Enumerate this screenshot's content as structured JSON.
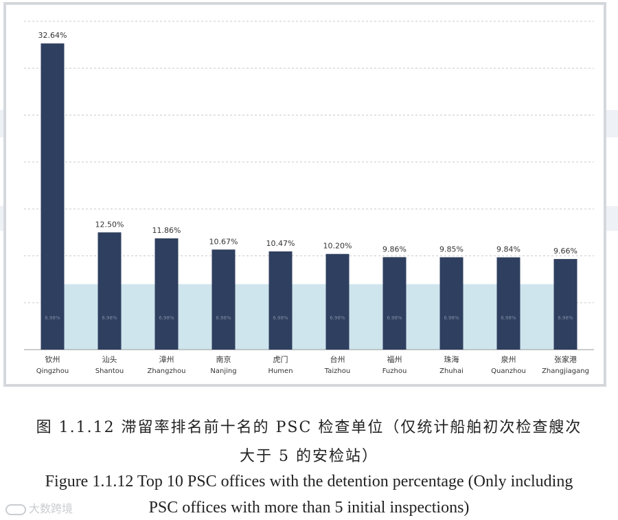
{
  "caption": {
    "cn_line1": "图 1.1.12 滞留率排名前十名的 PSC 检查单位（仅统计船舶初次检查艘次",
    "cn_line2": "大于 5 的安检站）",
    "en_line1": "Figure 1.1.12 Top 10 PSC offices with the detention percentage (Only including",
    "en_line2": "PSC offices with more than 5 initial inspections)"
  },
  "watermark": {
    "text": "大数跨境"
  },
  "chart_data": {
    "type": "bar",
    "categories": [
      {
        "cn": "钦州",
        "en": "Qingzhou"
      },
      {
        "cn": "汕头",
        "en": "Shantou"
      },
      {
        "cn": "漳州",
        "en": "Zhangzhou"
      },
      {
        "cn": "南京",
        "en": "Nanjing"
      },
      {
        "cn": "虎门",
        "en": "Humen"
      },
      {
        "cn": "台州",
        "en": "Taizhou"
      },
      {
        "cn": "福州",
        "en": "Fuzhou"
      },
      {
        "cn": "珠海",
        "en": "Zhuhai"
      },
      {
        "cn": "泉州",
        "en": "Quanzhou"
      },
      {
        "cn": "张家港",
        "en": "Zhangjiagang"
      }
    ],
    "values": [
      32.64,
      12.5,
      11.86,
      10.67,
      10.47,
      10.2,
      9.86,
      9.85,
      9.84,
      9.66
    ],
    "value_labels": [
      "32.64%",
      "12.50%",
      "11.86%",
      "10.67%",
      "10.47%",
      "10.20%",
      "9.86%",
      "9.85%",
      "9.84%",
      "9.66%"
    ],
    "average": 6.98,
    "average_label": "6.98%",
    "ylim": [
      0,
      35
    ],
    "grid": true,
    "colors": {
      "bar": "#2f3f5f",
      "average_area": "#cfe5ee",
      "gridline": "#c8c8c8"
    }
  }
}
